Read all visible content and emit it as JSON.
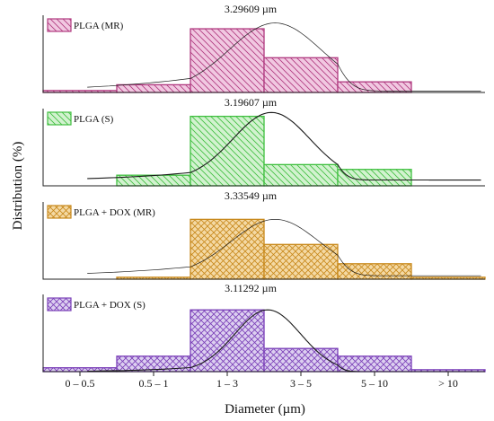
{
  "chart_data": [
    {
      "type": "bar",
      "legend": "PLGA (MR)",
      "peak_label": "3.29609 µm",
      "color": "#b0397f",
      "fill": "#f1c8e1",
      "pattern": "diag-left",
      "categories": [
        "0 – 0.5",
        "0.5 – 1",
        "1 – 3",
        "3 – 5",
        "5 – 10",
        "> 10"
      ],
      "values": [
        2,
        8,
        66,
        36,
        11,
        0
      ],
      "fit": {
        "mu": 3.3,
        "sigma": 1.25,
        "peak": 72,
        "base": 1.5
      }
    },
    {
      "type": "bar",
      "legend": "PLGA (S)",
      "peak_label": "3.19607 µm",
      "color": "#3fbf3f",
      "fill": "#d2f2cf",
      "pattern": "diag-left",
      "categories": [
        "0 – 0.5",
        "0.5 – 1",
        "1 – 3",
        "3 – 5",
        "5 – 10",
        "> 10"
      ],
      "values": [
        0,
        11,
        72,
        22,
        17,
        0
      ],
      "fit": {
        "mu": 3.2,
        "sigma": 1.05,
        "peak": 76,
        "base": 6
      }
    },
    {
      "type": "bar",
      "legend": "PLGA + DOX (MR)",
      "peak_label": "3.33549 µm",
      "color": "#c8891c",
      "fill": "#f4d9a4",
      "pattern": "cross",
      "categories": [
        "0 – 0.5",
        "0.5 – 1",
        "1 – 3",
        "3 – 5",
        "5 – 10",
        "> 10"
      ],
      "values": [
        0,
        2,
        62,
        36,
        16,
        2
      ],
      "fit": {
        "mu": 3.3,
        "sigma": 1.2,
        "peak": 62,
        "base": 3.5
      }
    },
    {
      "type": "bar",
      "legend": "PLGA + DOX (S)",
      "peak_label": "3.11292 µm",
      "color": "#7a3fb8",
      "fill": "#dccff0",
      "pattern": "cross",
      "categories": [
        "0 – 0.5",
        "0.5 – 1",
        "1 – 3",
        "3 – 5",
        "5 – 10",
        "> 10"
      ],
      "values": [
        4,
        16,
        64,
        24,
        16,
        2
      ],
      "fit": {
        "mu": 3.1,
        "sigma": 0.9,
        "peak": 64,
        "base": 0
      }
    }
  ],
  "xlabel": "Diameter (µm)",
  "ylabel": "Distribution (%)",
  "tick_labels": [
    "0 – 0.5",
    "0.5 – 1",
    "1 – 3",
    "3 – 5",
    "5 – 10",
    "> 10"
  ]
}
